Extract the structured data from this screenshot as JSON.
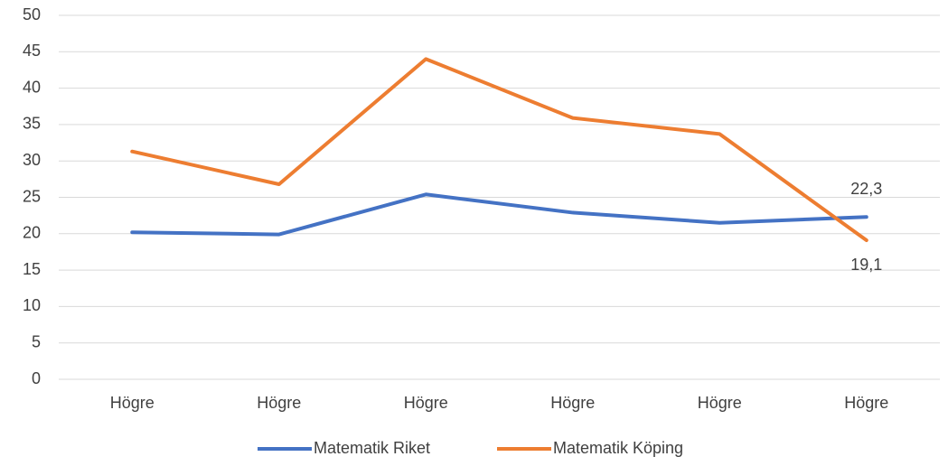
{
  "chart_data": {
    "type": "line",
    "categories": [
      "Högre",
      "Högre",
      "Högre",
      "Högre",
      "Högre",
      "Högre"
    ],
    "series": [
      {
        "name": "Matematik Riket",
        "color": "#4472c4",
        "values": [
          20.2,
          19.9,
          25.4,
          22.9,
          21.5,
          22.3
        ],
        "value_labels": [
          null,
          null,
          null,
          null,
          null,
          "22,3"
        ]
      },
      {
        "name": "Matematik Köping",
        "color": "#ed7d31",
        "values": [
          31.3,
          26.8,
          44.0,
          35.9,
          33.7,
          19.1
        ],
        "value_labels": [
          null,
          null,
          null,
          null,
          null,
          "19,1"
        ]
      }
    ],
    "ylim": [
      0,
      50
    ],
    "yticks": [
      0,
      5,
      10,
      15,
      20,
      25,
      30,
      35,
      40,
      45,
      50
    ],
    "grid": true,
    "legend": "bottom"
  }
}
